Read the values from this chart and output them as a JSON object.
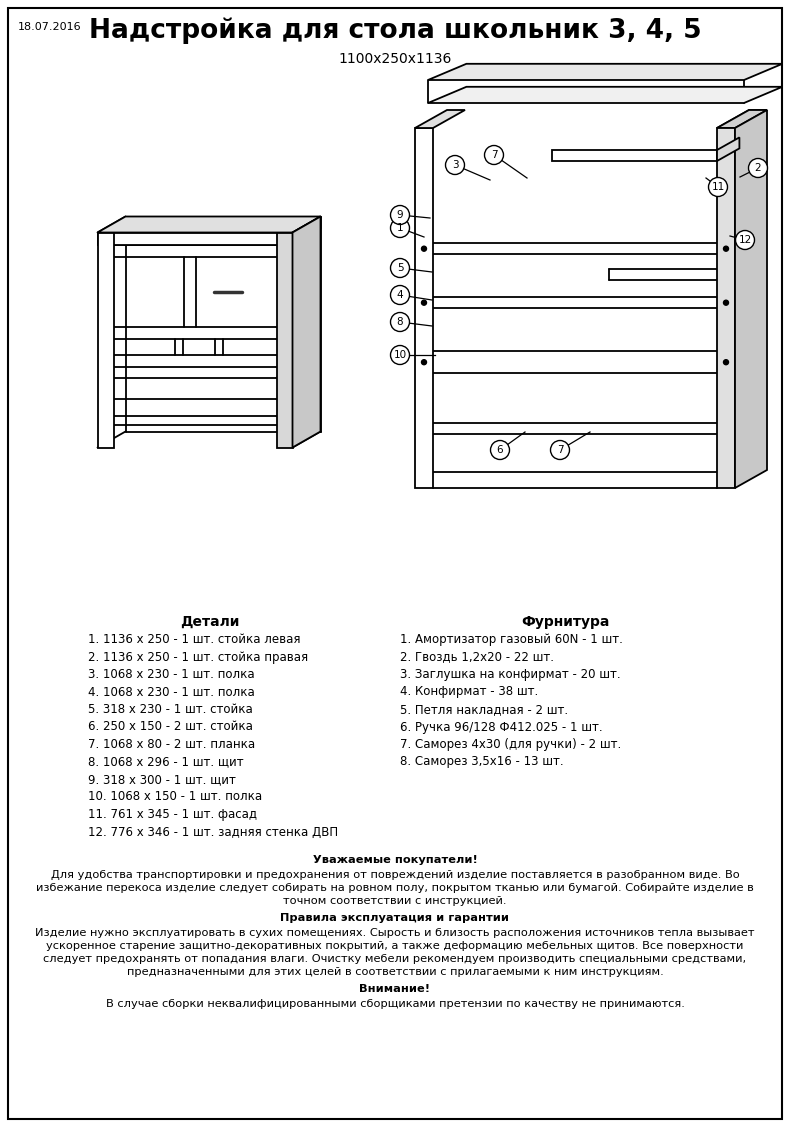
{
  "title": "Надстройка для стола школьник 3, 4, 5",
  "subtitle": "1100x250x1136",
  "date": "18.07.2016",
  "bg_color": "#ffffff",
  "border_color": "#000000",
  "details_header": "Детали",
  "furniture_header": "Фурнитура",
  "details": [
    "1. 1136 х 250 - 1 шт. стойка левая",
    "2. 1136 х 250 - 1 шт. стойка правая",
    "3. 1068 х 230 - 1 шт. полка",
    "4. 1068 х 230 - 1 шт. полка",
    "5. 318 х 230 - 1 шт. стойка",
    "6. 250 х 150 - 2 шт. стойка",
    "7. 1068 х 80 - 2 шт. планка",
    "8. 1068 х 296 - 1 шт. щит",
    "9. 318 х 300 - 1 шт. щит",
    "10. 1068 х 150 - 1 шт. полка",
    "11. 761 х 345 - 1 шт. фасад",
    "12. 776 х 346 - 1 шт. задняя стенка ДВП"
  ],
  "furniture": [
    "1. Амортизатор газовый 60N - 1 шт.",
    "2. Гвоздь 1,2х20 - 22 шт.",
    "3. Заглушка на конфирмат - 20 шт.",
    "4. Конфирмат - 38 шт.",
    "5. Петля накладная - 2 шт.",
    "6. Ручка 96/128 Ф412.025 - 1 шт.",
    "7. Саморез 4х30 (для ручки) - 2 шт.",
    "8. Саморез 3,5х16 - 13 шт."
  ],
  "notice_header": "Уважаемые покупатели!",
  "notice_lines": [
    "Для удобства транспортировки и предохранения от повреждений изделие поставляется в разобранном виде. Во",
    "избежание перекоса изделие следует собирать на ровном полу, покрытом тканью или бумагой. Собирайте изделие в",
    "точном соответствии с инструкцией."
  ],
  "rules_header": "Правила эксплуатация и гарантии",
  "rules_lines": [
    "Изделие нужно эксплуатировать в сухих помещениях. Сырость и близость расположения источников тепла вызывает",
    "ускоренное старение защитно-декоративных покрытий, а также деформацию мебельных щитов. Все поверхности",
    "следует предохранять от попадания влаги. Очистку мебели рекомендуем производить специальными средствами,",
    "предназначенными для этих целей в соответствии с прилагаемыми к ним инструкциям."
  ],
  "warning_header": "Внимание!",
  "warning_text": "В случае сборки неквалифицированными сборщиками претензии по качеству не принимаются."
}
